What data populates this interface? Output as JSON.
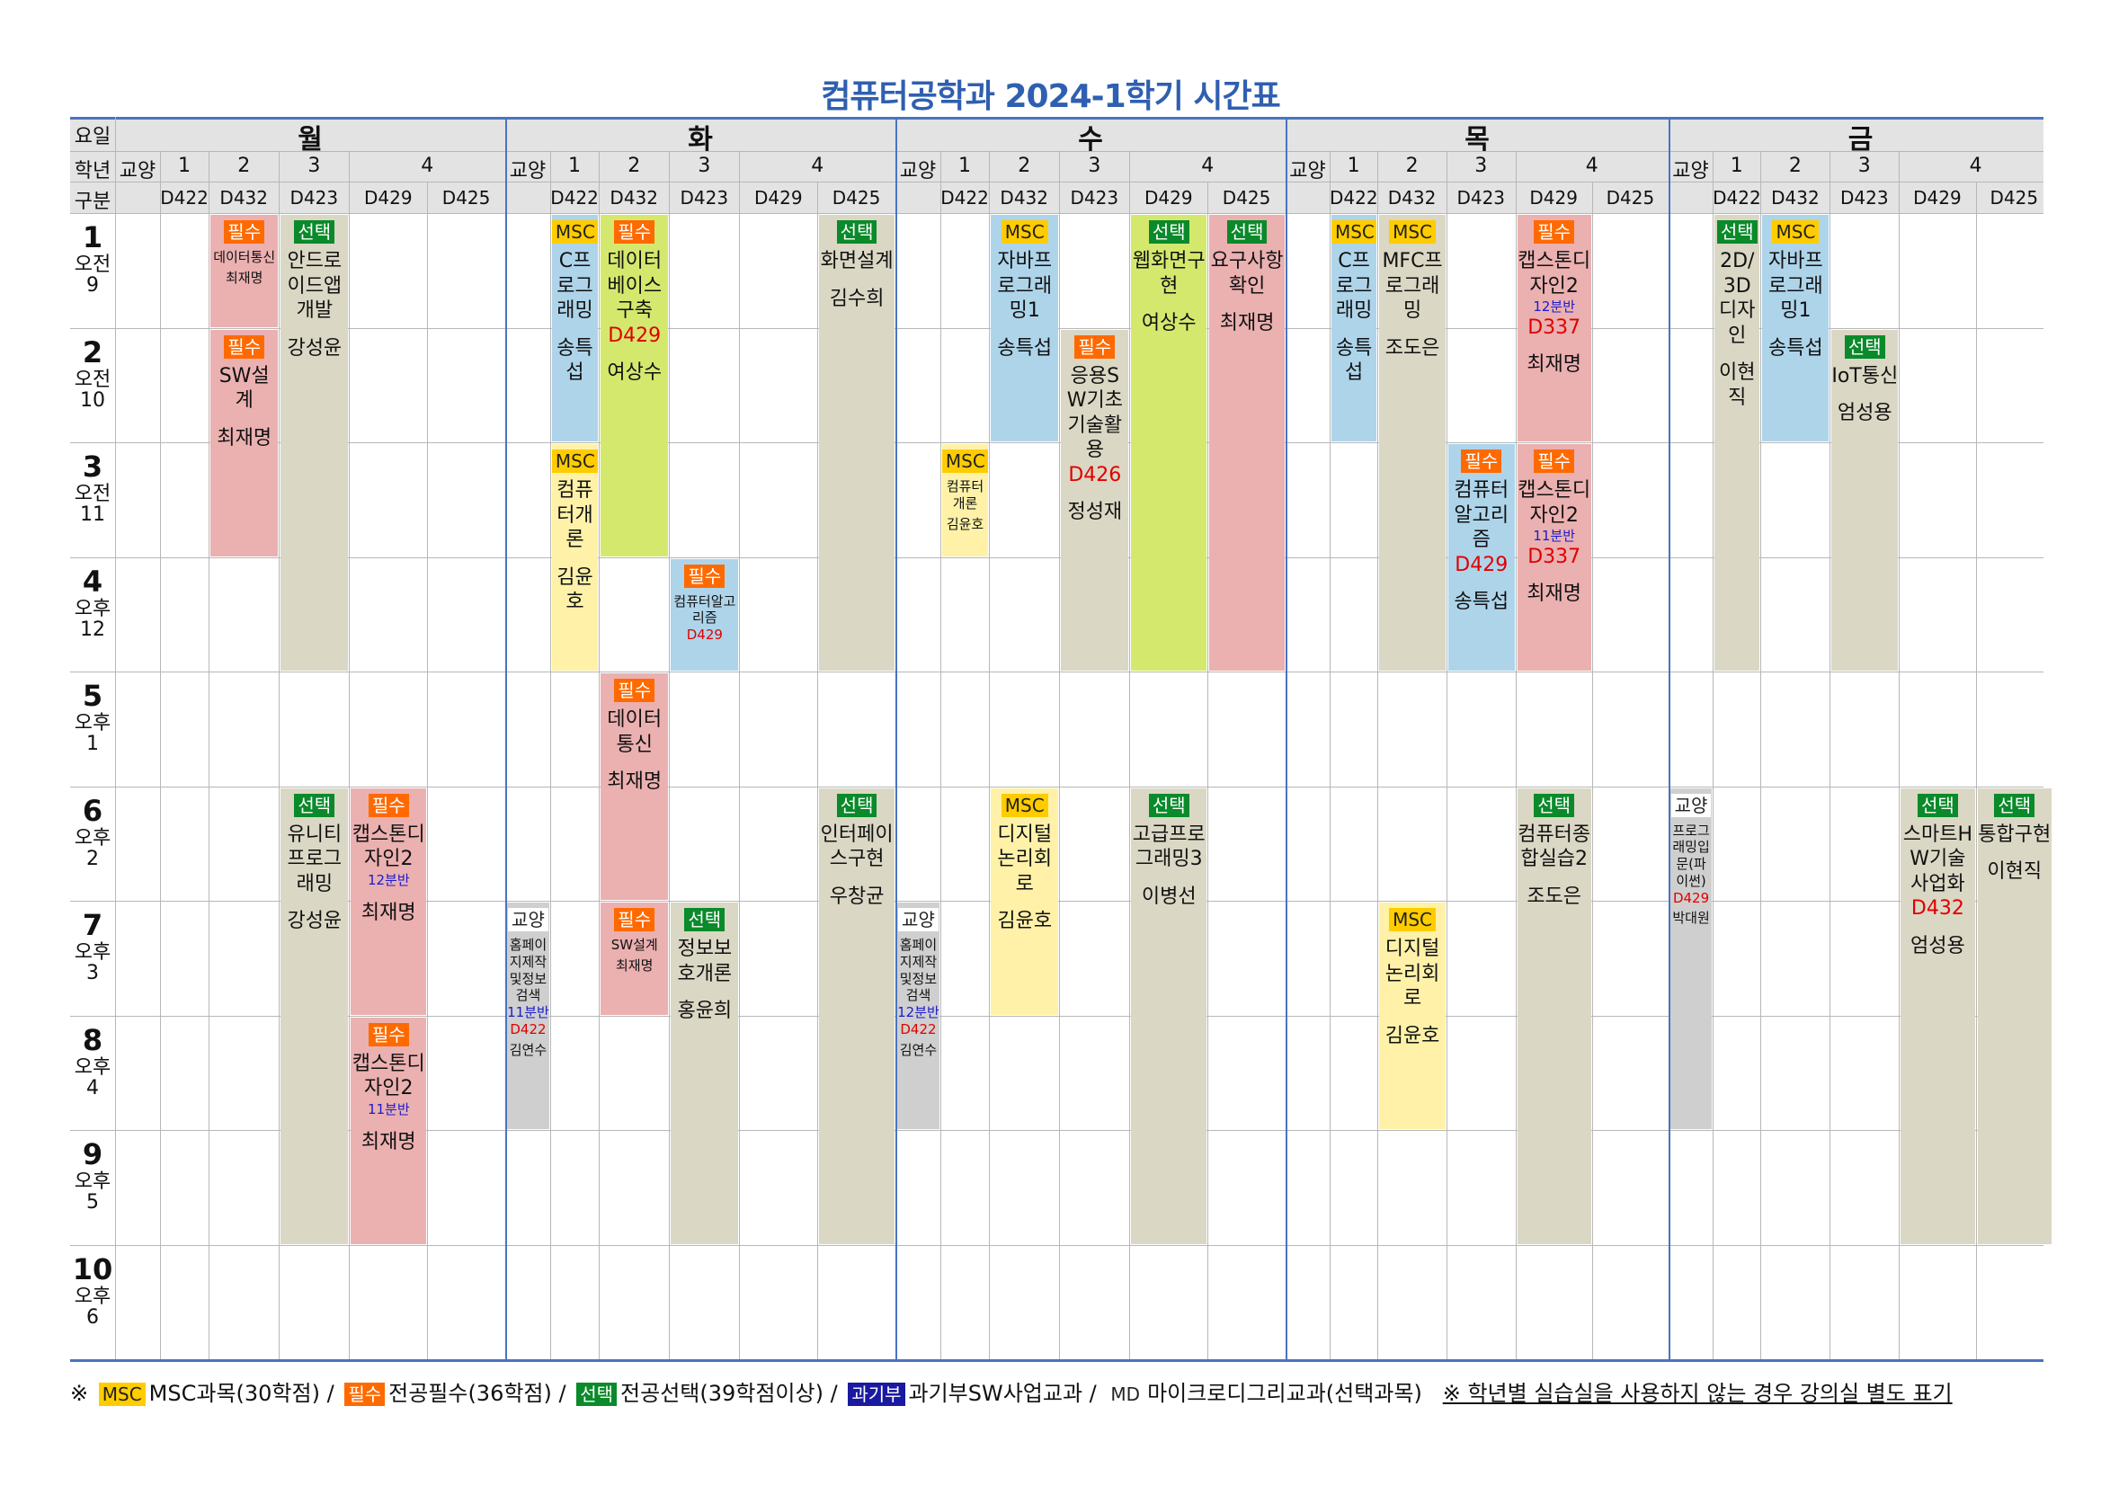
{
  "title": "컴퓨터공학과 2024-1학기 시간표",
  "header": {
    "yoil": "요일",
    "hakyeon": "학년",
    "gubun": "구분",
    "gyoyang": "교양"
  },
  "days": [
    {
      "name": "월",
      "grades": [
        "1",
        "2",
        "3",
        "4"
      ],
      "rooms": [
        "D422",
        "D432",
        "D423",
        "D429",
        "D425"
      ]
    },
    {
      "name": "화",
      "grades": [
        "1",
        "2",
        "3",
        "4"
      ],
      "rooms": [
        "D422",
        "D432",
        "D423",
        "D429",
        "D425"
      ]
    },
    {
      "name": "수",
      "grades": [
        "1",
        "2",
        "3",
        "4"
      ],
      "rooms": [
        "D422",
        "D432",
        "D423",
        "D429",
        "D425"
      ]
    },
    {
      "name": "목",
      "grades": [
        "1",
        "2",
        "3",
        "4"
      ],
      "rooms": [
        "D422",
        "D432",
        "D423",
        "D429",
        "D425"
      ]
    },
    {
      "name": "금",
      "grades": [
        "1",
        "2",
        "3",
        "4"
      ],
      "rooms": [
        "D422",
        "D432",
        "D423",
        "D429",
        "D425"
      ]
    }
  ],
  "periods": [
    {
      "n": "1",
      "ampm": "오전",
      "h": "9"
    },
    {
      "n": "2",
      "ampm": "오전",
      "h": "10"
    },
    {
      "n": "3",
      "ampm": "오전",
      "h": "11"
    },
    {
      "n": "4",
      "ampm": "오후",
      "h": "12"
    },
    {
      "n": "5",
      "ampm": "오후",
      "h": "1"
    },
    {
      "n": "6",
      "ampm": "오후",
      "h": "2"
    },
    {
      "n": "7",
      "ampm": "오후",
      "h": "3"
    },
    {
      "n": "8",
      "ampm": "오후",
      "h": "4"
    },
    {
      "n": "9",
      "ampm": "오후",
      "h": "5"
    },
    {
      "n": "10",
      "ampm": "오후",
      "h": "6"
    }
  ],
  "badges": {
    "msc": "MSC",
    "req": "필수",
    "sel": "선택",
    "lib": "교양",
    "gov": "과기부"
  },
  "courses": [
    {
      "day": 0,
      "col": 2,
      "start": 1,
      "span": 1,
      "type": "req",
      "color": "pink",
      "title": "데이터통신",
      "prof": "최재명",
      "small": true
    },
    {
      "day": 0,
      "col": 3,
      "start": 1,
      "span": 4,
      "type": "sel",
      "color": "tan",
      "title": "안드로이드앱개발",
      "prof": "강성윤"
    },
    {
      "day": 0,
      "col": 2,
      "start": 2,
      "span": 2,
      "type": "req",
      "color": "pink",
      "title": "SW설계",
      "prof": "최재명"
    },
    {
      "day": 0,
      "col": 3,
      "start": 6,
      "span": 4,
      "type": "sel",
      "color": "tan",
      "title": "유니티프로그래밍",
      "prof": "강성윤"
    },
    {
      "day": 0,
      "col": 4,
      "start": 6,
      "span": 2,
      "type": "req",
      "color": "pink",
      "title": "캡스톤디자인2",
      "ban": "12분반",
      "prof": "최재명"
    },
    {
      "day": 0,
      "col": 4,
      "start": 8,
      "span": 2,
      "type": "req",
      "color": "pink",
      "title": "캡스톤디자인2",
      "ban": "11분반",
      "prof": "최재명"
    },
    {
      "day": 1,
      "col": 1,
      "start": 1,
      "span": 2,
      "type": "msc",
      "color": "blue",
      "title": "C프로그래밍",
      "prof": "송특섭"
    },
    {
      "day": 1,
      "col": 2,
      "start": 1,
      "span": 3,
      "type": "req",
      "color": "green",
      "title": "데이터베이스구축",
      "prof": "여상수",
      "room": "D429"
    },
    {
      "day": 1,
      "col": 5,
      "start": 1,
      "span": 4,
      "type": "sel",
      "color": "tan",
      "title": "화면설계",
      "prof": "김수희"
    },
    {
      "day": 1,
      "col": 1,
      "start": 3,
      "span": 2,
      "type": "msc",
      "color": "msc",
      "title": "컴퓨터개론",
      "prof": "김윤호"
    },
    {
      "day": 1,
      "col": 3,
      "start": 4,
      "span": 1,
      "type": "req",
      "color": "blue",
      "title": "컴퓨터알고리즘",
      "room": "D429",
      "small": true
    },
    {
      "day": 1,
      "col": 2,
      "start": 5,
      "span": 2,
      "type": "req",
      "color": "pink",
      "title": "데이터통신",
      "prof": "최재명"
    },
    {
      "day": 1,
      "col": 5,
      "start": 6,
      "span": 4,
      "type": "sel",
      "color": "tan",
      "title": "인터페이스구현",
      "prof": "우창균"
    },
    {
      "day": 1,
      "col": 0,
      "start": 7,
      "span": 2,
      "type": "lib",
      "color": "gray",
      "title": "홈페이지제작및정보검색",
      "ban": "11분반",
      "prof": "김연수",
      "room": "D422",
      "small": true
    },
    {
      "day": 1,
      "col": 2,
      "start": 7,
      "span": 1,
      "type": "req",
      "color": "pink",
      "title": "SW설계",
      "prof": "최재명",
      "small": true
    },
    {
      "day": 1,
      "col": 3,
      "start": 7,
      "span": 3,
      "type": "sel",
      "color": "tan",
      "title": "정보보호개론",
      "prof": "홍윤희"
    },
    {
      "day": 2,
      "col": 2,
      "start": 1,
      "span": 2,
      "type": "msc",
      "color": "blue",
      "title": "자바프로그래밍1",
      "prof": "송특섭"
    },
    {
      "day": 2,
      "col": 4,
      "start": 1,
      "span": 4,
      "type": "sel",
      "color": "green",
      "title": "웹화면구현",
      "prof": "여상수"
    },
    {
      "day": 2,
      "col": 5,
      "start": 1,
      "span": 4,
      "type": "sel",
      "color": "pink",
      "title": "요구사항확인",
      "prof": "최재명"
    },
    {
      "day": 2,
      "col": 3,
      "start": 2,
      "span": 3,
      "type": "req",
      "color": "tan",
      "title": "응용SW기초기술활용",
      "room": "D426",
      "prof": "정성재"
    },
    {
      "day": 2,
      "col": 1,
      "start": 3,
      "span": 1,
      "type": "msc",
      "color": "msc",
      "title": "컴퓨터개론",
      "prof": "김윤호",
      "small": true
    },
    {
      "day": 2,
      "col": 2,
      "start": 6,
      "span": 2,
      "type": "msc",
      "color": "msc",
      "title": "디지털논리회로",
      "prof": "김윤호"
    },
    {
      "day": 2,
      "col": 4,
      "start": 6,
      "span": 4,
      "type": "sel",
      "color": "tan",
      "title": "고급프로그래밍3",
      "prof": "이병선"
    },
    {
      "day": 2,
      "col": 0,
      "start": 7,
      "span": 2,
      "type": "lib",
      "color": "gray",
      "title": "홈페이지제작및정보검색",
      "ban": "12분반",
      "prof": "김연수",
      "room": "D422",
      "small": true
    },
    {
      "day": 3,
      "col": 1,
      "start": 1,
      "span": 2,
      "type": "msc",
      "color": "blue",
      "title": "C프로그래밍",
      "prof": "송특섭"
    },
    {
      "day": 3,
      "col": 2,
      "start": 1,
      "span": 4,
      "type": "msc",
      "color": "tan",
      "title": "MFC프로그래밍",
      "prof": "조도은"
    },
    {
      "day": 3,
      "col": 4,
      "start": 1,
      "span": 2,
      "type": "req",
      "color": "pink",
      "title": "캡스톤디자인2",
      "ban": "12분반",
      "room": "D337",
      "prof": "최재명"
    },
    {
      "day": 3,
      "col": 3,
      "start": 3,
      "span": 2,
      "type": "req",
      "color": "blue",
      "title": "컴퓨터알고리즘",
      "room": "D429",
      "prof": "송특섭"
    },
    {
      "day": 3,
      "col": 4,
      "start": 3,
      "span": 2,
      "type": "req",
      "color": "pink",
      "title": "캡스톤디자인2",
      "ban": "11분반",
      "room": "D337",
      "prof": "최재명"
    },
    {
      "day": 3,
      "col": 4,
      "start": 6,
      "span": 4,
      "type": "sel",
      "color": "tan",
      "title": "컴퓨터종합실습2",
      "prof": "조도은"
    },
    {
      "day": 3,
      "col": 2,
      "start": 7,
      "span": 2,
      "type": "msc",
      "color": "msc",
      "title": "디지털논리회로",
      "prof": "김윤호"
    },
    {
      "day": 4,
      "col": 1,
      "start": 1,
      "span": 4,
      "type": "sel",
      "color": "tan",
      "title": "2D/3D디자인",
      "prof": "이현직"
    },
    {
      "day": 4,
      "col": 2,
      "start": 1,
      "span": 2,
      "type": "msc",
      "color": "blue",
      "title": "자바프로그래밍1",
      "prof": "송특섭"
    },
    {
      "day": 4,
      "col": 3,
      "start": 2,
      "span": 3,
      "type": "sel",
      "color": "tan",
      "title": "IoT통신",
      "prof": "엄성용"
    },
    {
      "day": 4,
      "col": 0,
      "start": 6,
      "span": 3,
      "type": "lib",
      "color": "gray",
      "title": "프로그래밍입문(파이썬)",
      "prof": "박대원",
      "room": "D429",
      "small": true
    },
    {
      "day": 4,
      "col": 4,
      "start": 6,
      "span": 4,
      "type": "sel",
      "color": "tan",
      "title": "스마트HW기술사업화",
      "room": "D432",
      "prof": "엄성용"
    },
    {
      "day": 4,
      "col": 5,
      "start": 6,
      "span": 4,
      "type": "sel",
      "color": "tan",
      "title": "통합구현",
      "prof": "이현직"
    }
  ],
  "legend": {
    "prefix": "※",
    "msc_text": "MSC과목(30학점) /",
    "req_text": "전공필수(36학점) /",
    "sel_text": "전공선택(39학점이상) /",
    "gov_text": "과기부SW사업교과 /",
    "md_badge": "MD",
    "md_text": "마이크로디그리교과(선택과목)",
    "note": "※ 학년별 실습실을 사용하지 않는 경우 강의실 별도 표기"
  },
  "colors": {
    "title": "#2f5fb0",
    "msc": "#ffcc00",
    "req": "#ff6a00",
    "sel": "#0a8a2a",
    "gov": "#1a1aa0",
    "cell_msc": "#fff2a8",
    "cell_pink": "#ebb0b0",
    "cell_tan": "#dad7c4",
    "cell_blue": "#aed4ea",
    "cell_green": "#d5e86e",
    "cell_gray": "#cfcfcf"
  }
}
